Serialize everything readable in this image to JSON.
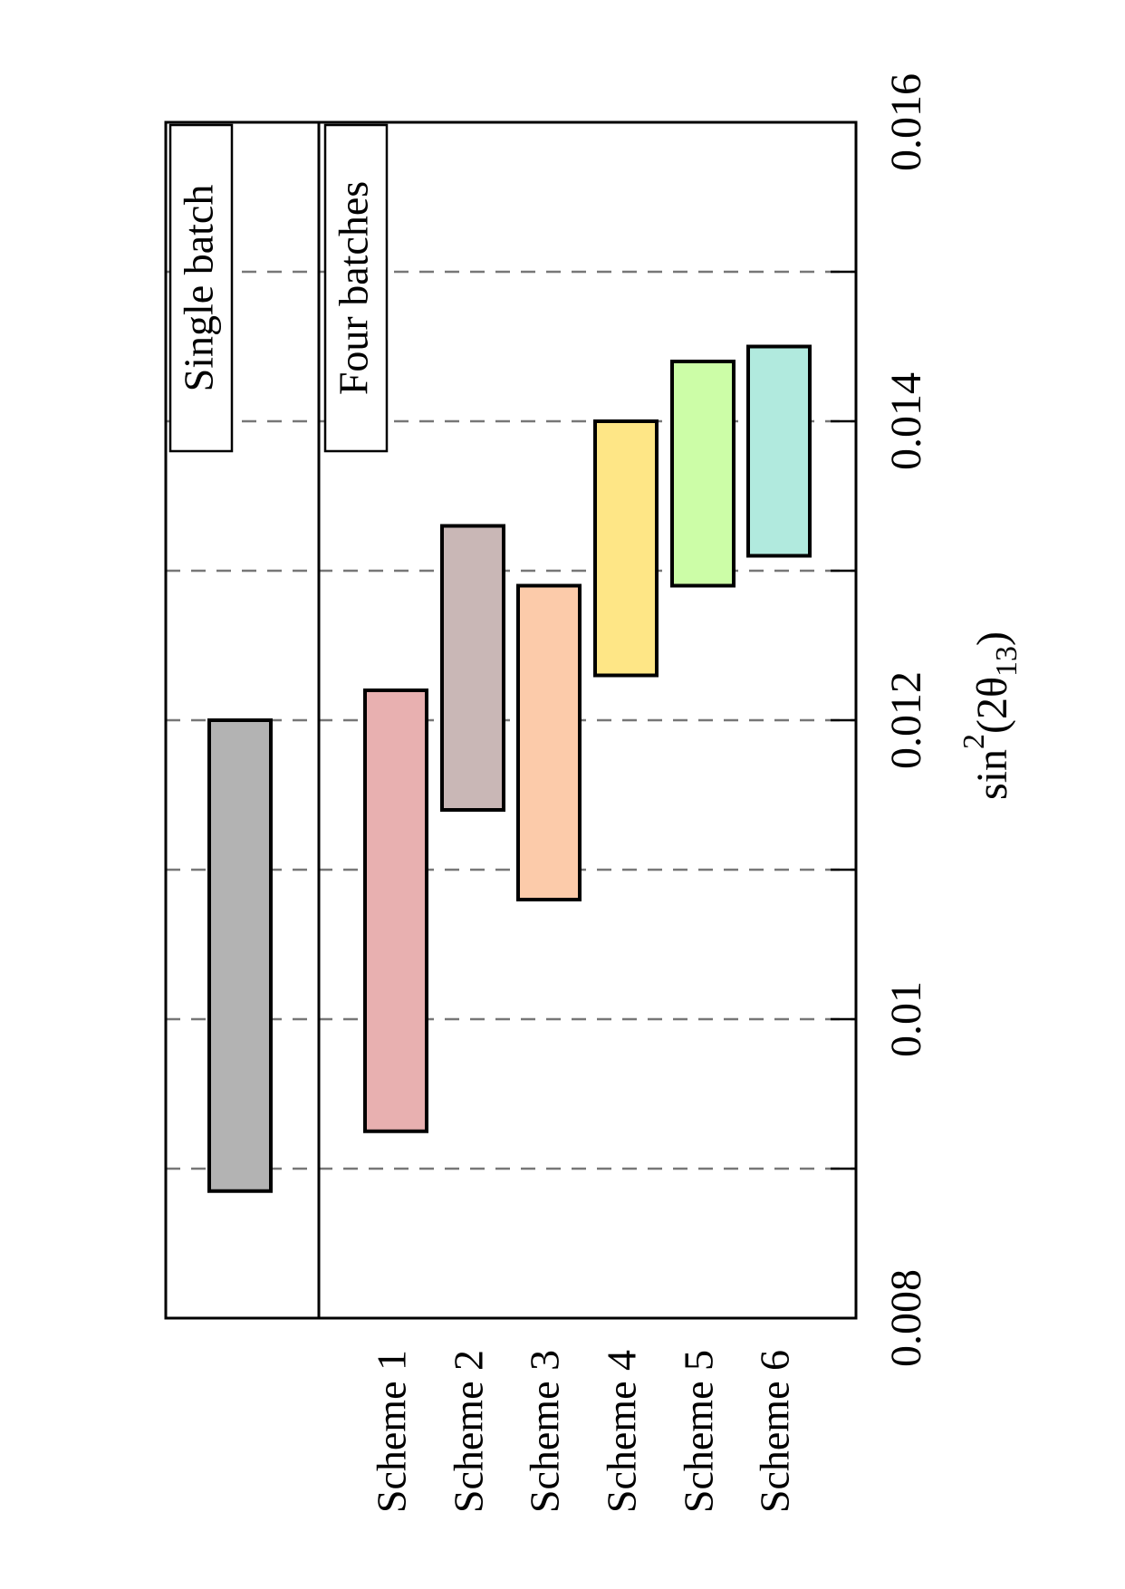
{
  "colors": {
    "background": "#ffffff",
    "frame": "#000000",
    "grid": "#777777"
  },
  "chart_data": {
    "type": "bar",
    "orientation": "rotated-90-counterclockwise",
    "grid": true,
    "grid_style": "dashed",
    "xlim": [
      0.008,
      0.016
    ],
    "xticks": [
      "0.008",
      "0.01",
      "0.012",
      "0.014",
      "0.016"
    ],
    "gridlines_at": [
      0.009,
      0.01,
      0.011,
      0.012,
      0.013,
      0.014,
      0.015
    ],
    "xlabel": {
      "base": "sin",
      "sup": "2",
      "open": "(2θ",
      "sub": "13",
      "close": ")"
    },
    "ylabel": "",
    "panels": [
      {
        "label": "Single batch",
        "series": [
          {
            "name": "",
            "low": 0.00885,
            "high": 0.012,
            "color": "#b3b3b3"
          }
        ]
      },
      {
        "label": "Four batches",
        "series": [
          {
            "name": "Scheme 1",
            "low": 0.00925,
            "high": 0.0122,
            "color": "#e8b0b0"
          },
          {
            "name": "Scheme 2",
            "low": 0.0114,
            "high": 0.0133,
            "color": "#c9b7b6"
          },
          {
            "name": "Scheme 3",
            "low": 0.0108,
            "high": 0.0129,
            "color": "#fccbaa"
          },
          {
            "name": "Scheme 4",
            "low": 0.0123,
            "high": 0.014,
            "color": "#fee686"
          },
          {
            "name": "Scheme 5",
            "low": 0.0129,
            "high": 0.0144,
            "color": "#ccfda7"
          },
          {
            "name": "Scheme 6",
            "low": 0.0131,
            "high": 0.0145,
            "color": "#b1eade"
          }
        ]
      }
    ]
  }
}
